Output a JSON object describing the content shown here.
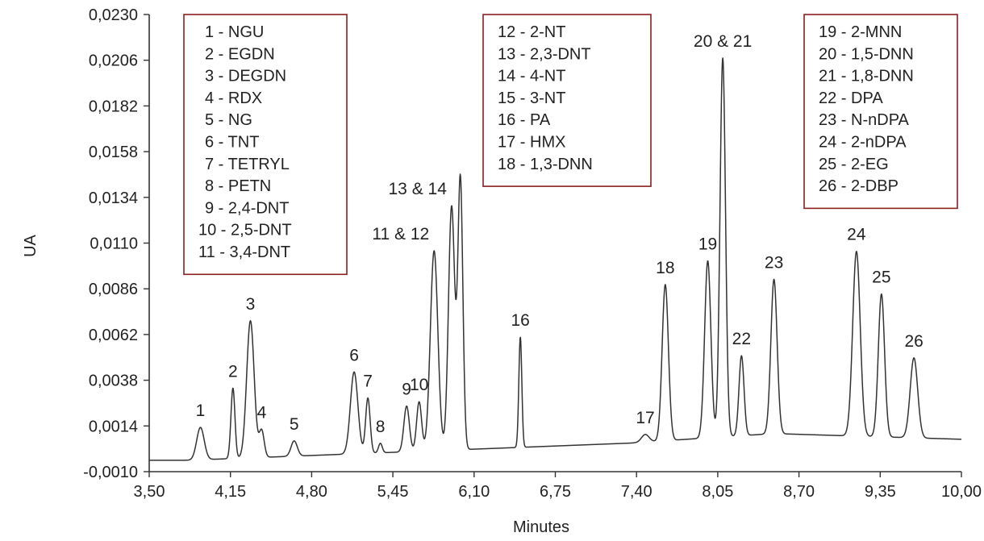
{
  "chart_data": {
    "type": "line",
    "xlabel": "Minutes",
    "ylabel": "UA",
    "xlim": [
      3.5,
      10.0
    ],
    "ylim": [
      -0.001,
      0.023
    ],
    "x_ticks": [
      "3,50",
      "4,15",
      "4,80",
      "5,45",
      "6,10",
      "6,75",
      "7,40",
      "8,05",
      "8,70",
      "9,35",
      "10,00"
    ],
    "y_ticks": [
      "0,0230",
      "0,0206",
      "0,0182",
      "0,0158",
      "0,0134",
      "0,0110",
      "0,0086",
      "0,0062",
      "0,0038",
      "0,0014",
      "-0,0010"
    ],
    "grid": false,
    "colors": {
      "line": "#333333",
      "legend_border": "#8b1f1f",
      "text": "#222222"
    },
    "baseline": {
      "points": [
        [
          3.5,
          -0.0004
        ],
        [
          3.82,
          -0.0004
        ],
        [
          7.35,
          0.0005
        ],
        [
          7.8,
          0.0007
        ],
        [
          8.5,
          0.001
        ],
        [
          10.0,
          0.0007
        ]
      ]
    },
    "peaks": [
      {
        "label": "1",
        "rt": 3.91,
        "height": 0.0017,
        "width": 0.03
      },
      {
        "label": "2",
        "rt": 4.17,
        "height": 0.0037,
        "width": 0.016
      },
      {
        "label": "3",
        "rt": 4.31,
        "height": 0.0072,
        "width": 0.03
      },
      {
        "label": "4",
        "rt": 4.4,
        "height": 0.0014,
        "width": 0.02
      },
      {
        "label": "5",
        "rt": 4.66,
        "height": 0.0008,
        "width": 0.025
      },
      {
        "label": "6",
        "rt": 5.14,
        "height": 0.0043,
        "width": 0.03
      },
      {
        "label": "7",
        "rt": 5.25,
        "height": 0.0029,
        "width": 0.018
      },
      {
        "label": "8",
        "rt": 5.35,
        "height": 0.0005,
        "width": 0.015
      },
      {
        "label": "9",
        "rt": 5.56,
        "height": 0.0024,
        "width": 0.022
      },
      {
        "label": "10",
        "rt": 5.66,
        "height": 0.0026,
        "width": 0.02
      },
      {
        "label": "11 & 12",
        "rt": 5.78,
        "height": 0.0105,
        "width": 0.03
      },
      {
        "label": "13 & 14",
        "rt": 5.92,
        "height": 0.0128,
        "width": 0.025
      },
      {
        "label": "",
        "rt": 5.99,
        "height": 0.0142,
        "width": 0.02
      },
      {
        "label": "16",
        "rt": 6.47,
        "height": 0.0058,
        "width": 0.012
      },
      {
        "label": "17",
        "rt": 7.47,
        "height": 0.0004,
        "width": 0.03
      },
      {
        "label": "18",
        "rt": 7.63,
        "height": 0.0082,
        "width": 0.025
      },
      {
        "label": "19",
        "rt": 7.97,
        "height": 0.0093,
        "width": 0.025
      },
      {
        "label": "20 & 21",
        "rt": 8.09,
        "height": 0.0199,
        "width": 0.022
      },
      {
        "label": "22",
        "rt": 8.24,
        "height": 0.0042,
        "width": 0.02
      },
      {
        "label": "23",
        "rt": 8.5,
        "height": 0.0081,
        "width": 0.025
      },
      {
        "label": "24",
        "rt": 9.16,
        "height": 0.0097,
        "width": 0.03
      },
      {
        "label": "25",
        "rt": 9.36,
        "height": 0.0075,
        "width": 0.025
      },
      {
        "label": "26",
        "rt": 9.62,
        "height": 0.0042,
        "width": 0.03
      }
    ],
    "legend_boxes": [
      {
        "entries": [
          "1 - NGU",
          "2 - EGDN",
          "3 - DEGDN",
          "4 - RDX",
          "5 - NG",
          "6 - TNT",
          "7 - TETRYL",
          "8 - PETN",
          "9 - 2,4-DNT",
          "10 - 2,5-DNT",
          "11 - 3,4-DNT"
        ]
      },
      {
        "entries": [
          "12 - 2-NT",
          "13 - 2,3-DNT",
          "14 - 4-NT",
          "15 - 3-NT",
          "16 - PA",
          "17 - HMX",
          "18 - 1,3-DNN"
        ]
      },
      {
        "entries": [
          "19 - 2-MNN",
          "20 - 1,5-DNN",
          "21 - 1,8-DNN",
          "22 - DPA",
          "23 - N-nDPA",
          "24 - 2-nDPA",
          "25 - 2-EG",
          "26 - 2-DBP"
        ]
      }
    ]
  }
}
